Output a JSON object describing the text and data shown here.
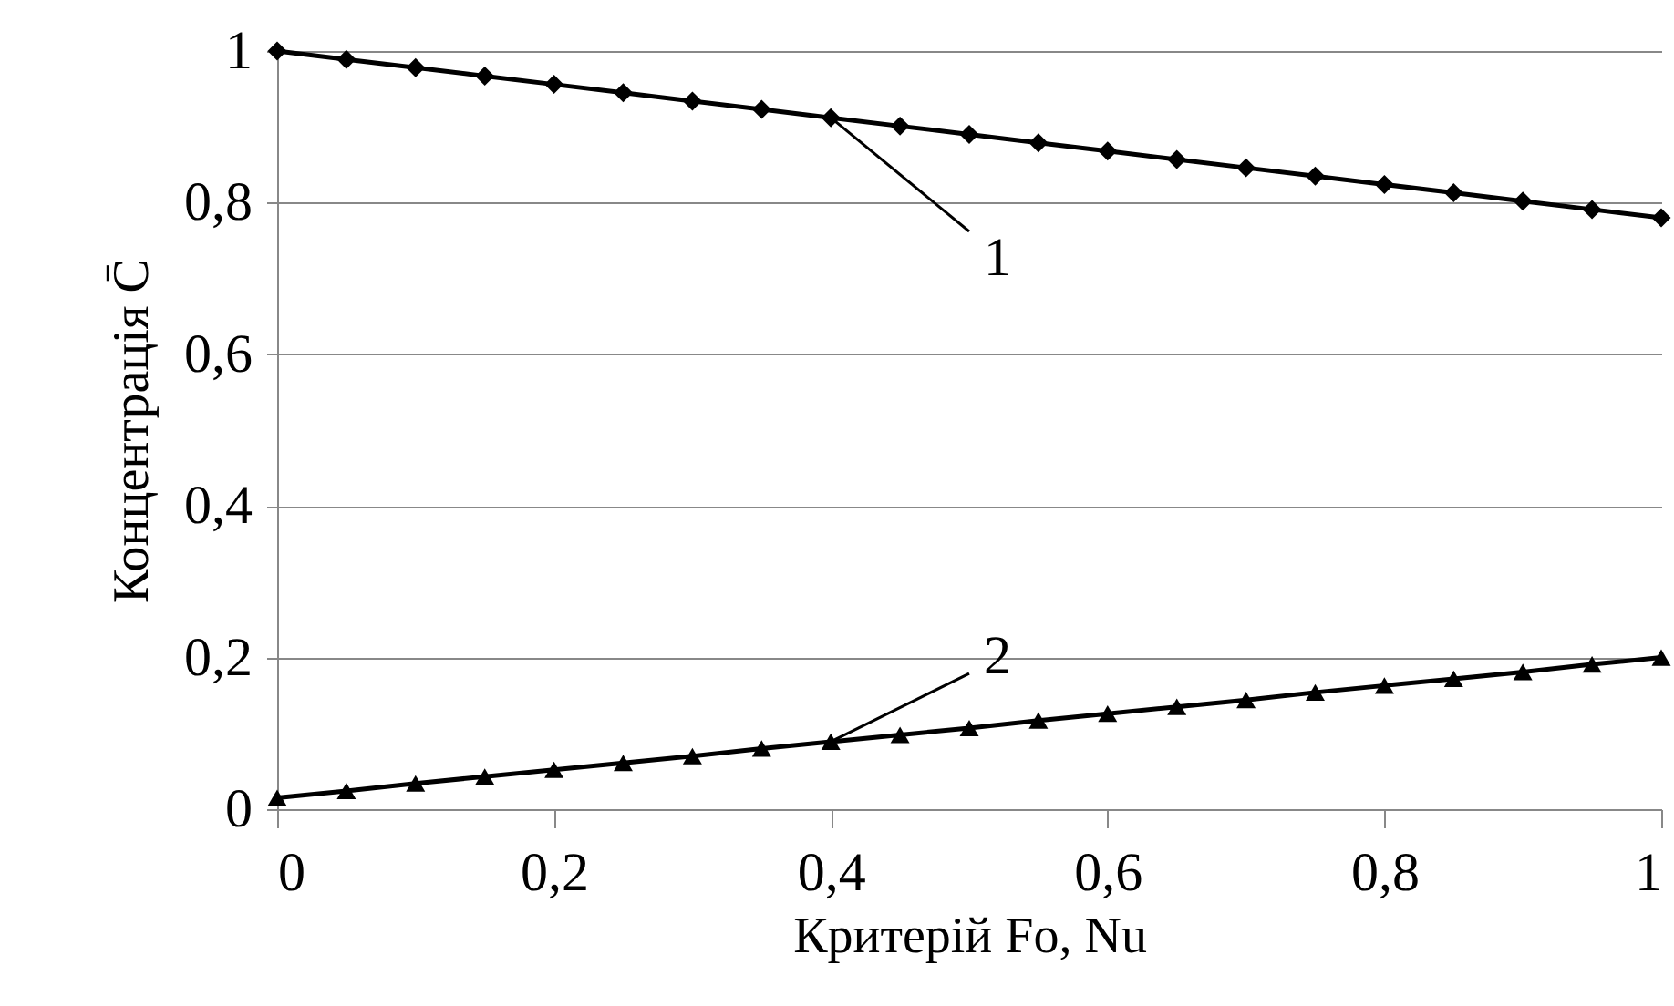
{
  "chart_data": {
    "type": "line",
    "xlabel": "Критерій Fo, Nu",
    "ylabel": "Концентрація  C̄",
    "x": [
      0,
      0.05,
      0.1,
      0.15,
      0.2,
      0.25,
      0.3,
      0.35,
      0.4,
      0.45,
      0.5,
      0.55,
      0.6,
      0.65,
      0.7,
      0.75,
      0.8,
      0.85,
      0.9,
      0.95,
      1
    ],
    "series": [
      {
        "name": "1",
        "color": "#000000",
        "marker": "diamond",
        "values": [
          1,
          0.989,
          0.978,
          0.967,
          0.956,
          0.945,
          0.934,
          0.923,
          0.912,
          0.901,
          0.89,
          0.879,
          0.868,
          0.857,
          0.846,
          0.835,
          0.824,
          0.813,
          0.802,
          0.791,
          0.78
        ]
      },
      {
        "name": "2",
        "color": "#000000",
        "marker": "triangle",
        "values": [
          0.015,
          0.024,
          0.034,
          0.043,
          0.052,
          0.061,
          0.07,
          0.08,
          0.089,
          0.098,
          0.107,
          0.117,
          0.126,
          0.135,
          0.144,
          0.154,
          0.163,
          0.172,
          0.181,
          0.191,
          0.2
        ]
      }
    ],
    "xlim": [
      0,
      1
    ],
    "xticks": [
      {
        "value": 0,
        "label": "0"
      },
      {
        "value": 0.2,
        "label": "0,2"
      },
      {
        "value": 0.4,
        "label": "0,4"
      },
      {
        "value": 0.6,
        "label": "0,6"
      },
      {
        "value": 0.8,
        "label": "0,8"
      },
      {
        "value": 1,
        "label": "1"
      }
    ],
    "ylim": [
      0,
      1
    ],
    "yticks": [
      {
        "value": 0,
        "label": "0"
      },
      {
        "value": 0.2,
        "label": "0,2"
      },
      {
        "value": 0.4,
        "label": "0,4"
      },
      {
        "value": 0.6,
        "label": "0,6"
      },
      {
        "value": 0.8,
        "label": "0,8"
      },
      {
        "value": 1,
        "label": "1"
      }
    ],
    "grid": "y"
  }
}
